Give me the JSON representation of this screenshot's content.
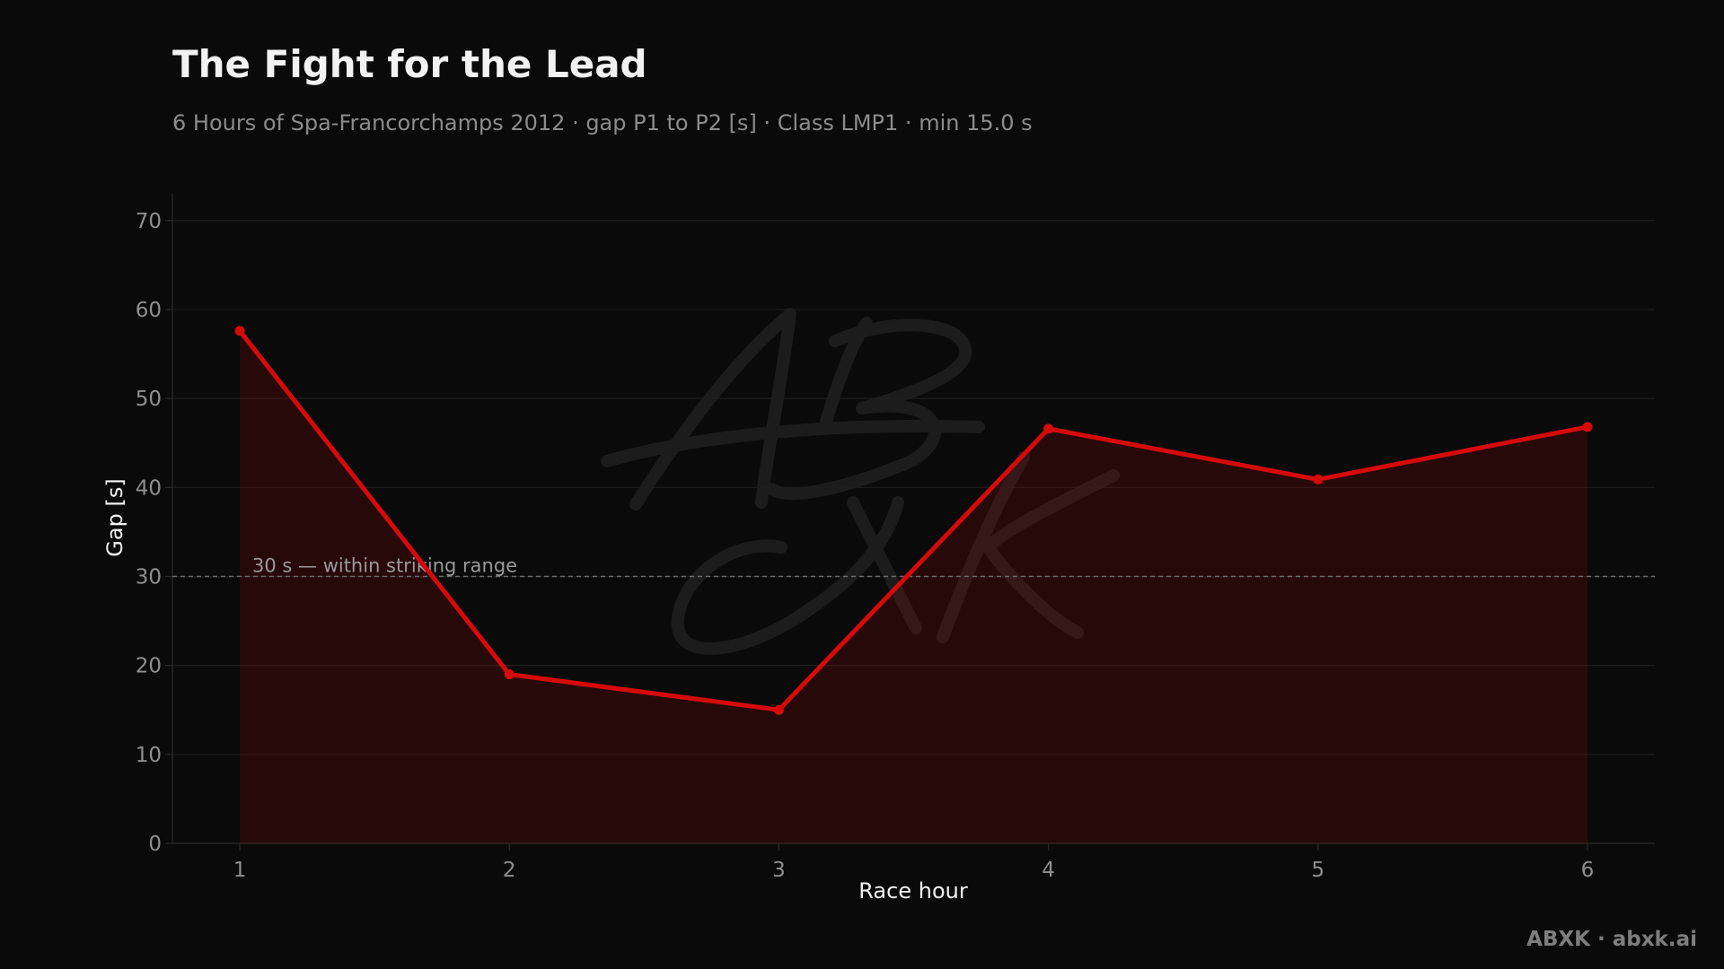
{
  "chart_data": {
    "type": "line",
    "title": "The Fight for the Lead",
    "subtitle": "6 Hours of Spa-Francorchamps 2012 · gap P1 to P2 [s] · Class LMP1 · min 15.0 s",
    "xlabel": "Race hour",
    "ylabel": "Gap [s]",
    "x": [
      1,
      2,
      3,
      4,
      5,
      6
    ],
    "xlim": [
      0.75,
      6.25
    ],
    "ylim": [
      0,
      73
    ],
    "yticks": [
      0,
      10,
      20,
      30,
      40,
      50,
      60,
      70
    ],
    "grid": true,
    "series": [
      {
        "values": [
          57.6,
          19.0,
          15.0,
          46.6,
          40.9,
          46.8
        ],
        "color": "#d60a0a"
      }
    ],
    "reference_line": {
      "y": 30,
      "label": "30 s — within striking range"
    }
  },
  "footer": {
    "brand": "ABXK · abxk.ai"
  },
  "watermark": {
    "text": "ABXK"
  }
}
